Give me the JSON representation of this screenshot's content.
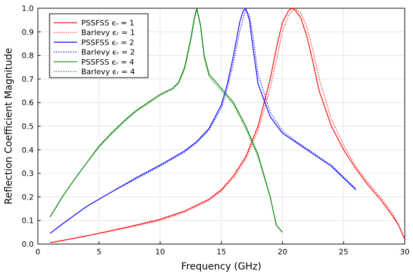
{
  "chart_data": {
    "type": "line",
    "title": "",
    "xlabel": "Frequency (GHz)",
    "ylabel": "Reflection Coefficient Magnitude",
    "xlim": [
      0,
      30
    ],
    "ylim": [
      0,
      1
    ],
    "xticks": [
      0,
      5,
      10,
      15,
      20,
      25,
      30
    ],
    "yticks": [
      0.0,
      0.1,
      0.2,
      0.3,
      0.4,
      0.5,
      0.6,
      0.7,
      0.8,
      0.9,
      1.0
    ],
    "xtick_labels": [
      "0",
      "5",
      "10",
      "15",
      "20",
      "25",
      "30"
    ],
    "ytick_labels": [
      "0.0",
      "0.1",
      "0.2",
      "0.3",
      "0.4",
      "0.5",
      "0.6",
      "0.7",
      "0.8",
      "0.9",
      "1.0"
    ],
    "grid": true,
    "legend_position": "top-left",
    "series": [
      {
        "name": "PSSFSS ϵᵣ = 1",
        "color": "#ff0000",
        "dash": "solid",
        "x": [
          1,
          2,
          4,
          6,
          8,
          10,
          12,
          14,
          15,
          16,
          17,
          18,
          19,
          19.5,
          20,
          20.5,
          20.8,
          21,
          21.5,
          22,
          22.5,
          23,
          24,
          25,
          26,
          27,
          28,
          29,
          29.5,
          30
        ],
        "y": [
          0.006,
          0.015,
          0.035,
          0.057,
          0.08,
          0.105,
          0.14,
          0.19,
          0.23,
          0.29,
          0.37,
          0.5,
          0.7,
          0.83,
          0.94,
          0.99,
          1.0,
          0.995,
          0.96,
          0.88,
          0.77,
          0.65,
          0.5,
          0.4,
          0.32,
          0.25,
          0.19,
          0.12,
          0.08,
          0.02
        ]
      },
      {
        "name": "Barlevy ϵᵣ = 1",
        "color": "#ff0000",
        "dash": "dotted",
        "x": [
          1,
          2,
          4,
          6,
          8,
          10,
          12,
          14,
          15,
          16,
          17,
          18,
          19,
          19.5,
          20,
          20.5,
          21,
          21.5,
          22,
          22.5,
          23,
          24,
          25,
          26,
          27,
          28,
          29,
          29.5,
          30
        ],
        "y": [
          0.006,
          0.015,
          0.034,
          0.055,
          0.077,
          0.1,
          0.135,
          0.185,
          0.225,
          0.28,
          0.36,
          0.48,
          0.66,
          0.78,
          0.9,
          0.97,
          1.0,
          0.98,
          0.92,
          0.82,
          0.7,
          0.53,
          0.42,
          0.33,
          0.26,
          0.2,
          0.13,
          0.08,
          0.02
        ]
      },
      {
        "name": "PSSFSS ϵᵣ = 2",
        "color": "#0000ff",
        "dash": "solid",
        "x": [
          1,
          2,
          4,
          6,
          8,
          10,
          12,
          13,
          14,
          15,
          15.5,
          16,
          16.5,
          16.8,
          17,
          17.3,
          17.6,
          18,
          19,
          20,
          21,
          22,
          23,
          24,
          25,
          26
        ],
        "y": [
          0.045,
          0.085,
          0.16,
          0.22,
          0.28,
          0.335,
          0.395,
          0.435,
          0.49,
          0.59,
          0.68,
          0.8,
          0.94,
          0.99,
          1.0,
          0.95,
          0.83,
          0.68,
          0.54,
          0.47,
          0.435,
          0.4,
          0.365,
          0.33,
          0.28,
          0.23
        ]
      },
      {
        "name": "Barlevy ϵᵣ = 2",
        "color": "#0000ff",
        "dash": "dotted",
        "x": [
          1,
          2,
          4,
          6,
          8,
          10,
          12,
          13,
          14,
          15,
          15.5,
          16,
          16.5,
          17,
          17.3,
          17.6,
          18,
          19,
          20,
          21,
          22,
          23,
          24,
          25,
          26
        ],
        "y": [
          0.045,
          0.085,
          0.16,
          0.22,
          0.275,
          0.33,
          0.39,
          0.43,
          0.485,
          0.575,
          0.66,
          0.77,
          0.9,
          0.995,
          0.97,
          0.88,
          0.72,
          0.56,
          0.48,
          0.44,
          0.405,
          0.37,
          0.335,
          0.285,
          0.235
        ]
      },
      {
        "name": "PSSFSS ϵᵣ = 4",
        "color": "#008000",
        "dash": "solid",
        "x": [
          1,
          2,
          3,
          4,
          5,
          6,
          7,
          8,
          9,
          10,
          11,
          11.5,
          12,
          12.5,
          12.8,
          13,
          13.3,
          13.6,
          14,
          15,
          16,
          17,
          18,
          19,
          19.5,
          20
        ],
        "y": [
          0.115,
          0.2,
          0.275,
          0.345,
          0.415,
          0.47,
          0.52,
          0.565,
          0.6,
          0.635,
          0.66,
          0.685,
          0.75,
          0.87,
          0.96,
          1.0,
          0.93,
          0.8,
          0.72,
          0.66,
          0.6,
          0.5,
          0.38,
          0.2,
          0.08,
          0.05
        ]
      },
      {
        "name": "Barlevy ϵᵣ = 4",
        "color": "#008000",
        "dash": "dotted",
        "x": [
          1,
          2,
          3,
          4,
          5,
          6,
          7,
          8,
          9,
          10,
          11,
          11.5,
          12,
          12.5,
          12.8,
          13,
          13.3,
          13.6,
          14,
          15,
          16,
          17,
          18,
          19,
          19.5,
          20
        ],
        "y": [
          0.115,
          0.2,
          0.275,
          0.345,
          0.41,
          0.465,
          0.515,
          0.56,
          0.595,
          0.63,
          0.655,
          0.68,
          0.74,
          0.86,
          0.95,
          0.995,
          0.92,
          0.79,
          0.71,
          0.65,
          0.59,
          0.49,
          0.37,
          0.2,
          0.08,
          0.05
        ]
      }
    ]
  }
}
